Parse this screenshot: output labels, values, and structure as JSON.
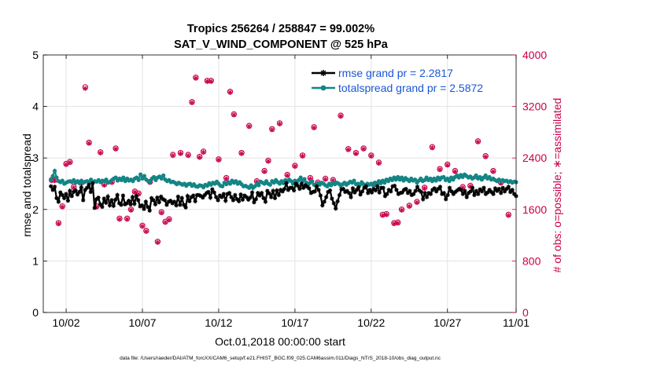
{
  "chart_data": {
    "type": "line",
    "title_line1": "Tropics 256264 / 258847 = 99.002%",
    "title_line2": "SAT_V_WIND_COMPONENT @ 525 hPa",
    "xlabel": "Oct.01,2018 00:00:00 start",
    "ylabel_left": "rmse and totalspread",
    "ylabel_right": "# of obs: o=possible; ∗=assimilated",
    "footer": "data file: /Users/raeder/DAI/ATM_forcXX/CAM6_setup/f.e21.FHIST_BGC.f09_025.CAM6assim.011/Diags_NTrS_2018-10/obs_diag_output.nc",
    "x_range": [
      0.5,
      31.5
    ],
    "xticks": [
      {
        "value": 2,
        "label": "10/02"
      },
      {
        "value": 7,
        "label": "10/07"
      },
      {
        "value": 12,
        "label": "10/12"
      },
      {
        "value": 17,
        "label": "10/17"
      },
      {
        "value": 22,
        "label": "10/22"
      },
      {
        "value": 27,
        "label": "10/27"
      },
      {
        "value": 32,
        "label": "11/01"
      }
    ],
    "yleft_range": [
      0,
      5
    ],
    "yleft_ticks": [
      "0",
      "1",
      "2",
      "3",
      "4",
      "5"
    ],
    "yright_range": [
      0,
      4000
    ],
    "yright_ticks": [
      "0",
      "800",
      "1600",
      "2400",
      "3200",
      "4000"
    ],
    "grid": true,
    "legend_position": "top-right",
    "series": [
      {
        "name": "rmse grand pr = 2.2817",
        "color": "#000000",
        "marker": "asterisk",
        "values": [
          2.45,
          2.38,
          2.44,
          2.22,
          2.15,
          2.33,
          2.28,
          2.22,
          2.3,
          2.17,
          2.36,
          2.26,
          2.34,
          2.37,
          2.29,
          2.34,
          2.43,
          2.18,
          2.38,
          2.42,
          2.48,
          2.34,
          2.51,
          2.03,
          2.2,
          2.23,
          2.1,
          2.05,
          2.21,
          2.13,
          2.25,
          2.08,
          2.18,
          2.07,
          2.19,
          2.28,
          2.12,
          2.09,
          2.27,
          2.1,
          2.12,
          2.17,
          2.1,
          2.24,
          2.11,
          2.26,
          2.18,
          2.06,
          2.08,
          2.01,
          2.15,
          2.05,
          1.98,
          2.22,
          2.18,
          2.1,
          2.23,
          2.14,
          2.25,
          2.2,
          2.18,
          2.09,
          2.15,
          2.17,
          2.12,
          2.15,
          2.08,
          2.25,
          2.09,
          2.22,
          2.09,
          2.04,
          2.26,
          2.16,
          2.24,
          2.27,
          2.16,
          2.28,
          2.28,
          2.26,
          2.23,
          2.28,
          2.32,
          2.34,
          2.23,
          2.39,
          2.33,
          2.24,
          2.18,
          2.27,
          2.24,
          2.3,
          2.17,
          2.3,
          2.32,
          2.24,
          2.18,
          2.28,
          2.2,
          2.16,
          2.29,
          2.19,
          2.27,
          2.24,
          2.19,
          2.23,
          2.33,
          2.14,
          2.2,
          2.32,
          2.27,
          2.32,
          2.22,
          2.15,
          2.36,
          2.31,
          2.24,
          2.36,
          2.22,
          2.37,
          2.28,
          2.38,
          2.35,
          2.4,
          2.51,
          2.38,
          2.42,
          2.42,
          2.37,
          2.5,
          2.46,
          2.4,
          2.5,
          2.42,
          2.47,
          2.44,
          2.41,
          2.32,
          2.34,
          2.35,
          2.45,
          2.38,
          2.27,
          2.08,
          2.15,
          2.24,
          2.34,
          2.37,
          2.21,
          2.12,
          2.02,
          2.16,
          2.28,
          2.39,
          2.4,
          2.34,
          2.36,
          2.32,
          2.24,
          2.41,
          2.33,
          2.38,
          2.43,
          2.29,
          2.35,
          2.42,
          2.45,
          2.32,
          2.38,
          2.33,
          2.4,
          2.37,
          2.45,
          2.33,
          2.42,
          2.42,
          2.26,
          2.3,
          2.38,
          2.35,
          2.45,
          2.46,
          2.38,
          2.3,
          2.32,
          2.33,
          2.38,
          2.4,
          2.32,
          2.36,
          2.28,
          2.3,
          2.36,
          2.44,
          2.37,
          2.34,
          2.2,
          2.32,
          2.24,
          2.32,
          2.3,
          2.38,
          2.41,
          2.35,
          2.4,
          2.44,
          2.3,
          2.32,
          2.2,
          2.28,
          2.42,
          2.35,
          2.3,
          2.34,
          2.37,
          2.4,
          2.38,
          2.3,
          2.36,
          2.24,
          2.32,
          2.35,
          2.42,
          2.28,
          2.36,
          2.3,
          2.39,
          2.35,
          2.42,
          2.3,
          2.33,
          2.38,
          2.34,
          2.3,
          2.41,
          2.36,
          2.4,
          2.32,
          2.42,
          2.35,
          2.4,
          2.44,
          2.34,
          2.38,
          2.3,
          2.26
        ]
      },
      {
        "name": "totalspread grand pr = 2.5872",
        "color": "#138585",
        "marker": "circle",
        "values": [
          2.58,
          2.65,
          2.75,
          2.62,
          2.55,
          2.53,
          2.56,
          2.5,
          2.52,
          2.54,
          2.55,
          2.53,
          2.57,
          2.52,
          2.55,
          2.51,
          2.56,
          2.52,
          2.54,
          2.55,
          2.53,
          2.58,
          2.52,
          2.55,
          2.54,
          2.57,
          2.53,
          2.56,
          2.55,
          2.58,
          2.52,
          2.54,
          2.57,
          2.6,
          2.62,
          2.56,
          2.6,
          2.57,
          2.62,
          2.55,
          2.6,
          2.56,
          2.58,
          2.55,
          2.6,
          2.62,
          2.57,
          2.68,
          2.6,
          2.65,
          2.58,
          2.55,
          2.53,
          2.6,
          2.63,
          2.57,
          2.62,
          2.64,
          2.6,
          2.66,
          2.58,
          2.55,
          2.57,
          2.53,
          2.54,
          2.52,
          2.49,
          2.52,
          2.5,
          2.48,
          2.5,
          2.46,
          2.49,
          2.5,
          2.46,
          2.49,
          2.45,
          2.44,
          2.47,
          2.46,
          2.43,
          2.48,
          2.46,
          2.51,
          2.48,
          2.52,
          2.5,
          2.54,
          2.5,
          2.46,
          2.45,
          2.52,
          2.49,
          2.53,
          2.5,
          2.56,
          2.52,
          2.55,
          2.5,
          2.53,
          2.49,
          2.45,
          2.46,
          2.44,
          2.42,
          2.47,
          2.42,
          2.45,
          2.5,
          2.47,
          2.54,
          2.52,
          2.5,
          2.55,
          2.5,
          2.48,
          2.55,
          2.52,
          2.57,
          2.53,
          2.5,
          2.55,
          2.51,
          2.57,
          2.54,
          2.58,
          2.55,
          2.5,
          2.56,
          2.52,
          2.57,
          2.62,
          2.55,
          2.59,
          2.52,
          2.48,
          2.52,
          2.55,
          2.48,
          2.46,
          2.51,
          2.48,
          2.52,
          2.5,
          2.47,
          2.45,
          2.5,
          2.47,
          2.52,
          2.49,
          2.52,
          2.5,
          2.46,
          2.49,
          2.52,
          2.48,
          2.51,
          2.54,
          2.52,
          2.56,
          2.49,
          2.5,
          2.47,
          2.53,
          2.49,
          2.46,
          2.5,
          2.48,
          2.5,
          2.47,
          2.52,
          2.5,
          2.55,
          2.51,
          2.56,
          2.52,
          2.58,
          2.55,
          2.6,
          2.57,
          2.62,
          2.58,
          2.63,
          2.58,
          2.62,
          2.56,
          2.61,
          2.58,
          2.55,
          2.6,
          2.56,
          2.58,
          2.52,
          2.56,
          2.6,
          2.55,
          2.57,
          2.62,
          2.57,
          2.6,
          2.55,
          2.6,
          2.56,
          2.62,
          2.58,
          2.62,
          2.63,
          2.57,
          2.6,
          2.55,
          2.62,
          2.58,
          2.63,
          2.66,
          2.62,
          2.67,
          2.63,
          2.68,
          2.65,
          2.62,
          2.64,
          2.6,
          2.62,
          2.66,
          2.6,
          2.63,
          2.58,
          2.62,
          2.66,
          2.6,
          2.63,
          2.58,
          2.6,
          2.57,
          2.55,
          2.58,
          2.55,
          2.57,
          2.55,
          2.56,
          2.53,
          2.55,
          2.52,
          2.54,
          2.53
        ]
      },
      {
        "name": "obs possible",
        "color": "#c8004a",
        "marker": "open-circle",
        "axis": "right",
        "x": [
          1.05,
          1.25,
          1.5,
          1.75,
          2.0,
          2.25,
          2.5,
          3.0,
          3.25,
          3.5,
          4.0,
          4.25,
          4.5,
          5.0,
          5.25,
          5.5,
          6.0,
          6.25,
          6.5,
          6.75,
          7.0,
          7.25,
          7.5,
          8.0,
          8.25,
          8.5,
          8.75,
          9.0,
          9.5,
          10.0,
          10.25,
          10.5,
          10.75,
          11.0,
          11.25,
          11.5,
          12.0,
          12.5,
          12.75,
          13.0,
          13.5,
          14.0,
          14.5,
          15.0,
          15.25,
          15.5,
          16.0,
          16.5,
          17.0,
          17.5,
          18.0,
          18.25,
          18.5,
          19.0,
          19.5,
          20.0,
          20.5,
          21.0,
          21.5,
          22.0,
          22.25,
          22.5,
          22.75,
          23.0,
          23.5,
          23.75,
          24.0,
          24.5,
          25.0,
          25.5,
          26.0,
          26.5,
          27.0,
          27.5,
          28.0,
          28.5,
          29.0,
          29.5,
          30.0,
          30.5,
          31.0
        ],
        "values": [
          2060,
          2060,
          1390,
          1650,
          2310,
          2340,
          1950,
          2020,
          3500,
          2640,
          1650,
          2490,
          1990,
          2030,
          2550,
          1460,
          1460,
          1600,
          1880,
          1850,
          1350,
          1270,
          2030,
          1100,
          1560,
          1410,
          1450,
          2450,
          2480,
          2450,
          3270,
          3650,
          2420,
          2500,
          3600,
          3600,
          2380,
          2090,
          3430,
          3080,
          2480,
          2900,
          2040,
          2200,
          2360,
          2850,
          2940,
          2140,
          2280,
          2440,
          2090,
          2880,
          2020,
          2080,
          2060,
          3060,
          2540,
          2480,
          2550,
          2440,
          2000,
          2330,
          1520,
          1530,
          1390,
          1400,
          1600,
          1660,
          1720,
          1940,
          2570,
          2230,
          2300,
          2200,
          1950,
          1970,
          2660,
          2430,
          2200,
          2020,
          1520
        ]
      },
      {
        "name": "obs assimilated",
        "color": "#c8004a",
        "marker": "asterisk",
        "axis": "right",
        "x": [
          1.05,
          1.25,
          1.5,
          1.75,
          2.0,
          2.25,
          2.5,
          3.0,
          3.25,
          3.5,
          4.0,
          4.25,
          4.5,
          5.0,
          5.25,
          5.5,
          6.0,
          6.25,
          6.5,
          6.75,
          7.0,
          7.25,
          7.5,
          8.0,
          8.25,
          8.5,
          8.75,
          9.0,
          9.5,
          10.0,
          10.25,
          10.5,
          10.75,
          11.0,
          11.25,
          11.5,
          12.0,
          12.5,
          12.75,
          13.0,
          13.5,
          14.0,
          14.5,
          15.0,
          15.25,
          15.5,
          16.0,
          16.5,
          17.0,
          17.5,
          18.0,
          18.25,
          18.5,
          19.0,
          19.5,
          20.0,
          20.5,
          21.0,
          21.5,
          22.0,
          22.25,
          22.5,
          22.75,
          23.0,
          23.5,
          23.75,
          24.0,
          24.5,
          25.0,
          25.5,
          26.0,
          26.5,
          27.0,
          27.5,
          28.0,
          28.5,
          29.0,
          29.5,
          30.0,
          30.5,
          31.0
        ],
        "values": [
          2050,
          2050,
          1380,
          1640,
          2300,
          2330,
          1940,
          2010,
          3480,
          2630,
          1640,
          2480,
          1980,
          2020,
          2540,
          1450,
          1450,
          1590,
          1870,
          1840,
          1340,
          1260,
          2020,
          1090,
          1550,
          1400,
          1440,
          2440,
          2470,
          2440,
          3260,
          3640,
          2410,
          2490,
          3590,
          3590,
          2370,
          2080,
          3420,
          3070,
          2470,
          2890,
          2030,
          2190,
          2350,
          2840,
          2930,
          2130,
          2270,
          2430,
          2080,
          2870,
          2010,
          2070,
          2050,
          3050,
          2530,
          2470,
          2540,
          2430,
          1990,
          2320,
          1510,
          1520,
          1380,
          1390,
          1590,
          1650,
          1710,
          1930,
          2560,
          2220,
          2290,
          2190,
          1940,
          1960,
          2650,
          2420,
          2190,
          2010,
          1510
        ]
      }
    ]
  }
}
